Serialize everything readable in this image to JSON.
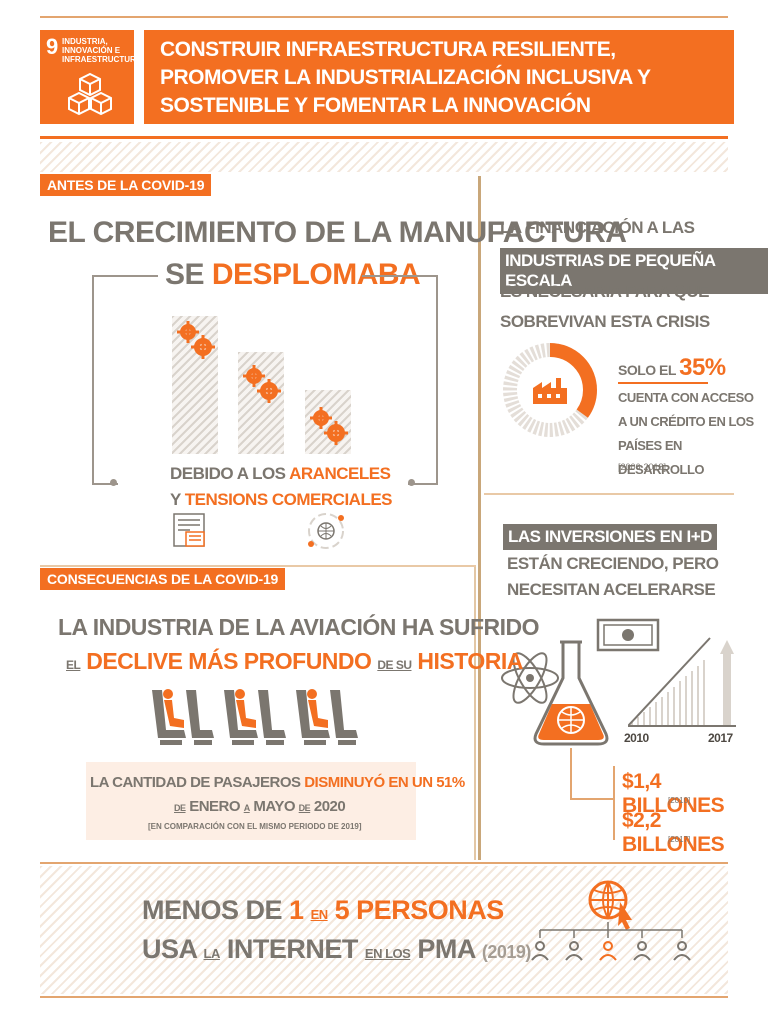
{
  "header": {
    "goal_number": "9",
    "goal_name_lines": [
      "INDUSTRIA,",
      "INNOVACIÓN E",
      "INFRAESTRUCTURA"
    ],
    "title_lines": [
      "CONSTRUIR INFRAESTRUCTURA RESILIENTE,",
      "PROMOVER LA INDUSTRIALIZACIÓN INCLUSIVA Y",
      "SOSTENIBLE Y FOMENTAR LA INNOVACIÓN"
    ]
  },
  "before": {
    "tag": "ANTES DE LA COVID-19",
    "headline_1": "EL CRECIMIENTO DE LA MANUFACTURA",
    "headline_2a": "SE ",
    "headline_2b": "DESPLOMABA",
    "reason_1a": "DEBIDO A LOS ",
    "reason_1b": "ARANCELES",
    "reason_2a": "Y ",
    "reason_2b": "TENSIONS COMERCIALES",
    "icons": [
      "tariff-document-icon",
      "globe-trade-icon"
    ]
  },
  "financing": {
    "line1": "LA FINANCIACIÓN A LAS",
    "highlight": "INDUSTRIAS DE PEQUEÑA ESCALA",
    "line3": "ES NECESARIA PARA QUE",
    "line4": "SOBREVIVAN ESTA CRISIS",
    "percent_prefix": "SOLO EL ",
    "percent": "35%",
    "percent_value": 35,
    "desc_lines": [
      "CUENTA CON ACCESO",
      "A UN CRÉDITO EN LOS",
      "PAÍSES EN DESARROLLO"
    ],
    "period": "[2006-2018]",
    "colors": {
      "accent": "#f36f21",
      "ring": "#d9d3cc"
    }
  },
  "research": {
    "highlight": "LAS INVERSIONES EN I+D",
    "line2": "ESTÁN CRECIENDO, PERO",
    "line3": "NECESITAN ACELERARSE",
    "year_start": "2010",
    "year_end": "2017",
    "amount_1": "$1,4 BILLONES",
    "amount_1_year": "[2010]",
    "amount_2": "$2,2 BILLONES",
    "amount_2_year": "[2017]"
  },
  "after": {
    "tag": "CONSECUENCIAS DE LA COVID-19",
    "headline_1": "LA INDUSTRIA DE LA AVIACIÓN HA SUFRIDO",
    "h2_el": "EL",
    "h2_decline": "DECLIVE MÁS PROFUNDO",
    "h2_desu": "DE SU",
    "h2_hist": "HISTORIA",
    "stat_a": "LA CANTIDAD DE PASAJEROS ",
    "stat_b": "DISMINUYÓ EN UN 51%",
    "date_de": "DE",
    "date_enero": "ENERO",
    "date_a": "A",
    "date_mayo": "MAYO",
    "date_de2": "DE",
    "date_year": "2020",
    "comparison": "[EN COMPARACIÓN CON EL MISMO PERIODO DE 2019]"
  },
  "internet": {
    "l1_a": "MENOS DE ",
    "l1_b": "1",
    "l1_en": "EN",
    "l1_c": "5 PERSONAS",
    "l2_a": "USA",
    "l2_la": "LA",
    "l2_b": "INTERNET",
    "l2_enlos": "EN LOS",
    "l2_c": "PMA",
    "l2_year": "(2019)"
  }
}
